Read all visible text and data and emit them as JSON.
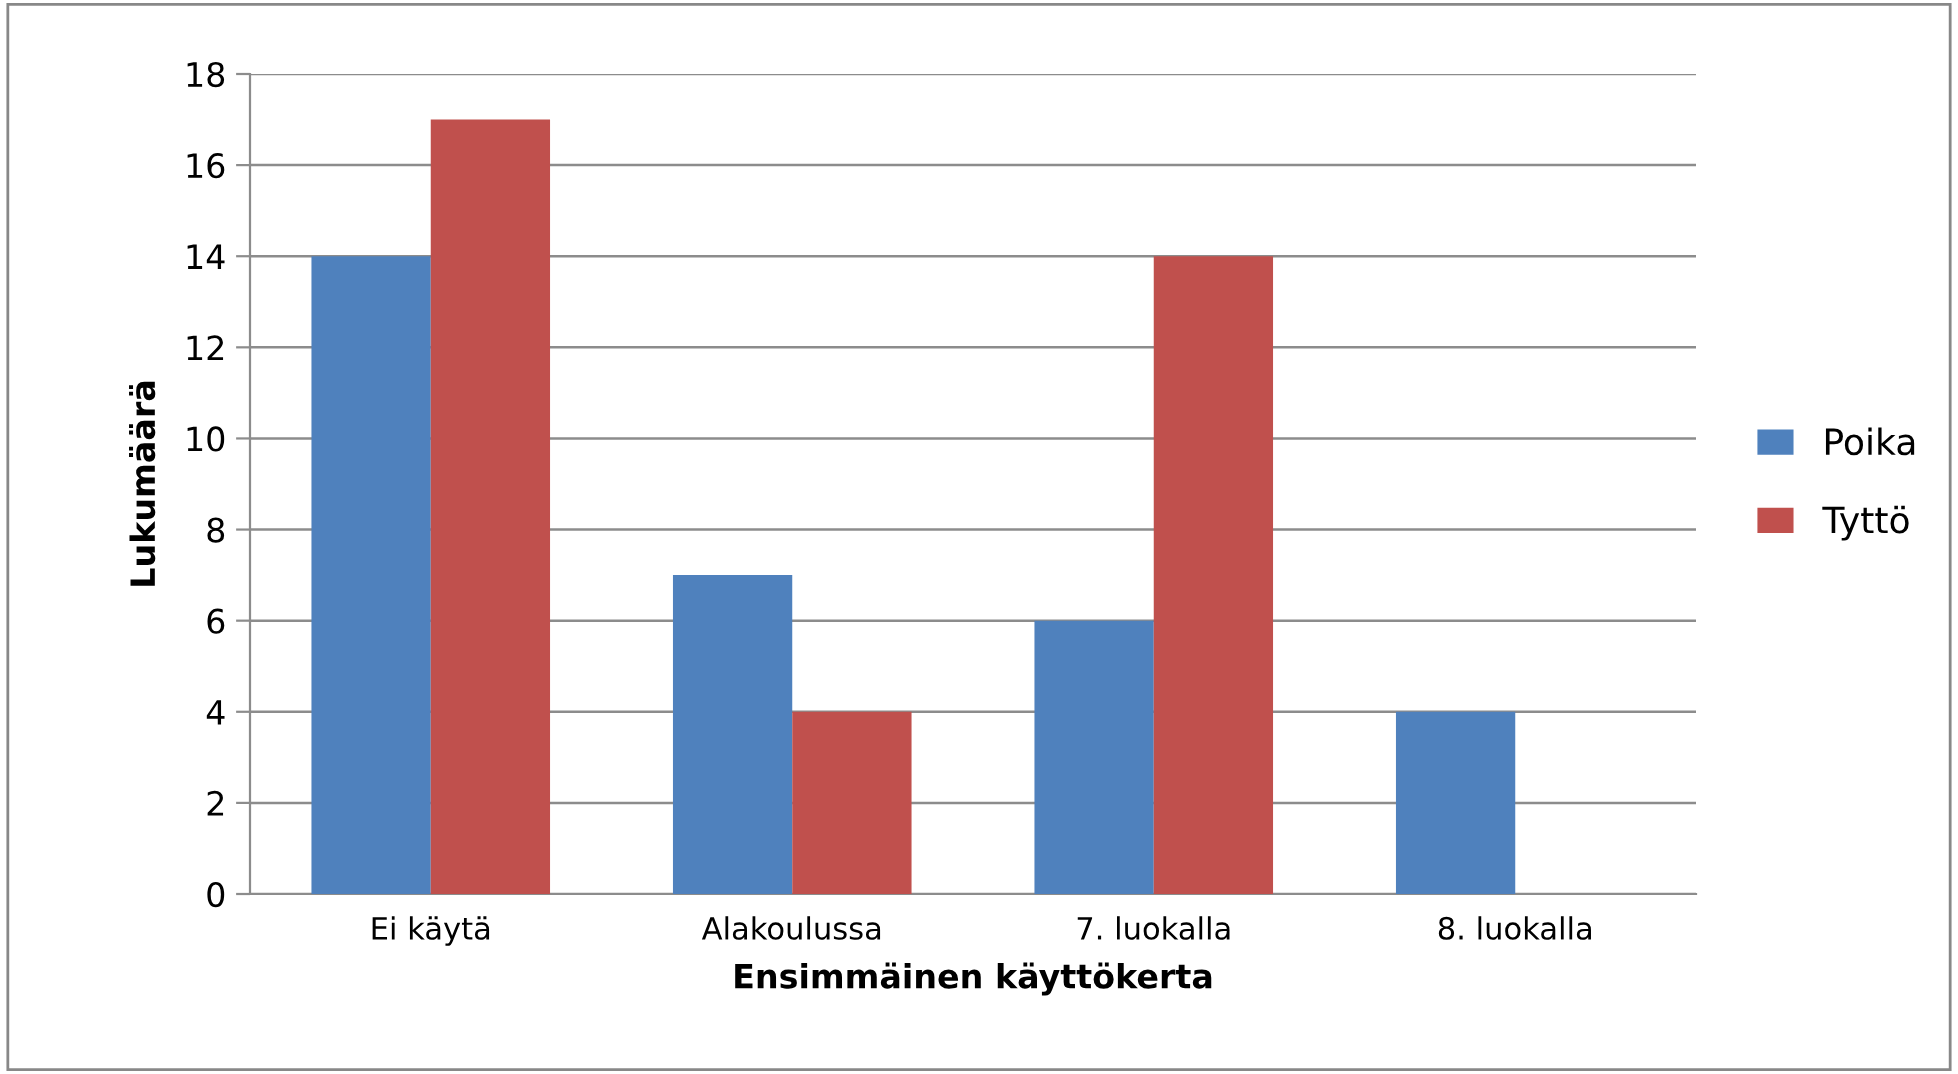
{
  "chart_data": {
    "type": "bar",
    "xlabel": "Ensimmäinen käyttökerta",
    "ylabel": "Lukumäärä",
    "categories": [
      "Ei käytä",
      "Alakoulussa",
      "7. luokalla",
      "8. luokalla"
    ],
    "series": [
      {
        "name": "Poika",
        "color": "#4f81bd",
        "values": [
          14,
          7,
          6,
          4
        ]
      },
      {
        "name": "Tyttö",
        "color": "#c0504d",
        "values": [
          17,
          4,
          14,
          0
        ]
      }
    ],
    "ylim": [
      0,
      18
    ],
    "yticks": [
      0,
      2,
      4,
      6,
      8,
      10,
      12,
      14,
      16,
      18
    ],
    "grid": "y",
    "legend": "right"
  }
}
